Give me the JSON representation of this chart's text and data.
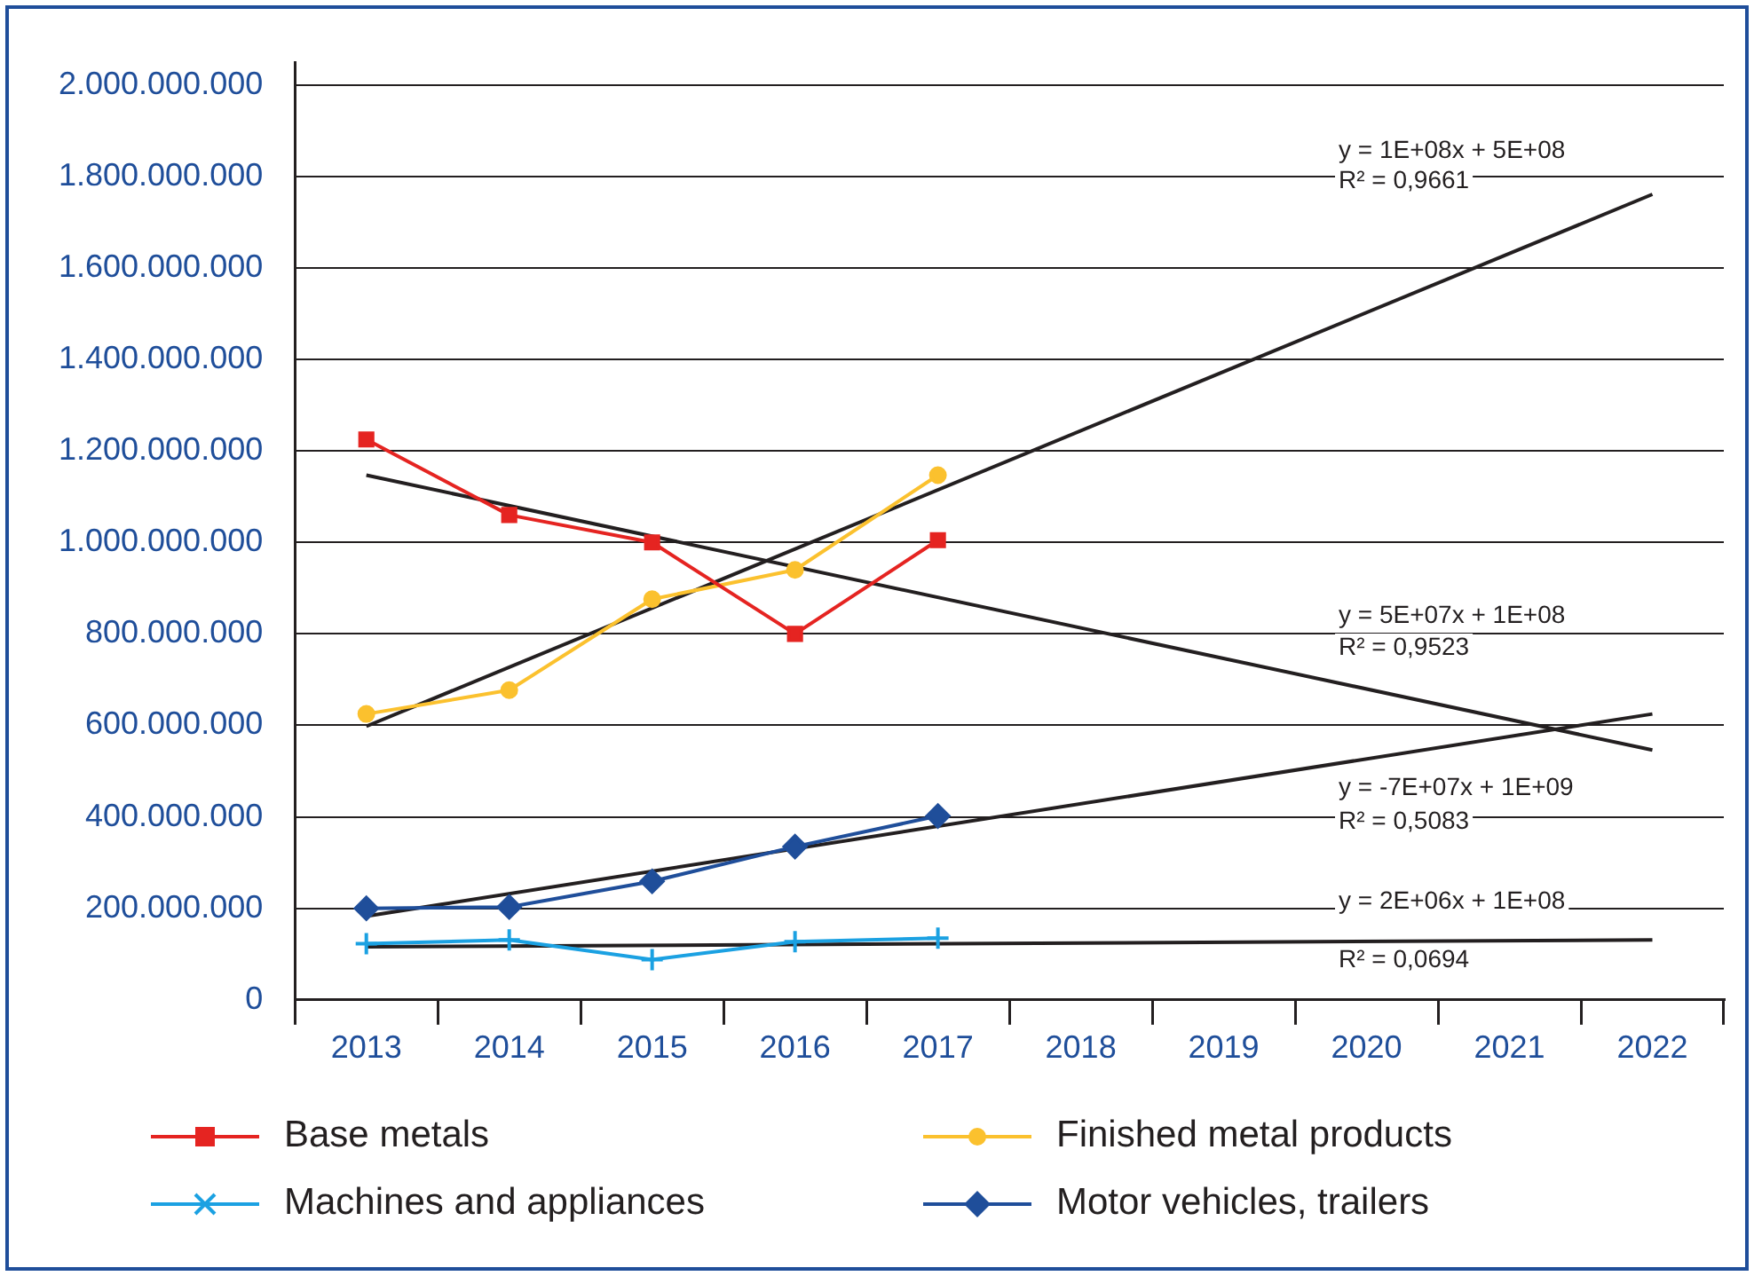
{
  "chart_data": {
    "type": "line",
    "categories": [
      "2013",
      "2014",
      "2015",
      "2016",
      "2017",
      "2018",
      "2019",
      "2020",
      "2021",
      "2022"
    ],
    "ylim": [
      0,
      2050000000
    ],
    "yticks": [
      0,
      {
        "value": 200000000,
        "label": "200.000.000"
      },
      {
        "value": 400000000,
        "label": "400.000.000"
      },
      {
        "value": 600000000,
        "label": "600.000.000"
      },
      {
        "value": 800000000,
        "label": "800.000.000"
      },
      {
        "value": 1000000000,
        "label": "1.000.000.000"
      },
      {
        "value": 1200000000,
        "label": "1.200.000.000"
      },
      {
        "value": 1400000000,
        "label": "1.400.000.000"
      },
      {
        "value": 1600000000,
        "label": "1.600.000.000"
      },
      {
        "value": 1800000000,
        "label": "1.800.000.000"
      },
      {
        "value": 2000000000,
        "label": "2.000.000.000"
      }
    ],
    "grid": "y",
    "legend": "bottom",
    "line_style": "solid",
    "series": [
      {
        "name": "Base metals",
        "color": "#e52421",
        "marker": "square",
        "values": [
          1225000000,
          1060000000,
          1000000000,
          800000000,
          1005000000,
          null,
          null,
          null,
          null,
          null
        ]
      },
      {
        "name": "Finished metal products",
        "color": "#fbc12e",
        "marker": "circle",
        "values": [
          625000000,
          677000000,
          876000000,
          940000000,
          1147000000,
          null,
          null,
          null,
          null,
          null
        ]
      },
      {
        "name": "Machines and appliances",
        "color": "#1ba1e2",
        "marker": "cross",
        "values": [
          123000000,
          131000000,
          88000000,
          127000000,
          135000000,
          null,
          null,
          null,
          null,
          null
        ]
      },
      {
        "name": "Motor vehicles, trailers",
        "color": "#1f4e9a",
        "marker": "diamond",
        "values": [
          200000000,
          203000000,
          259000000,
          335000000,
          402000000,
          null,
          null,
          null,
          null,
          null
        ]
      },
      {
        "type": "line",
        "color": "#231f20",
        "marker": "none",
        "values": [
          598000000,
          null,
          null,
          null,
          null,
          null,
          null,
          null,
          null,
          1761000000
        ]
      },
      {
        "type": "line",
        "color": "#231f20",
        "marker": "none",
        "values": [
          1147000000,
          null,
          null,
          null,
          null,
          null,
          null,
          null,
          null,
          546000000
        ]
      },
      {
        "type": "line",
        "color": "#231f20",
        "marker": "none",
        "values": [
          183000000,
          null,
          null,
          null,
          null,
          null,
          null,
          null,
          null,
          625000000
        ]
      },
      {
        "type": "line",
        "color": "#231f20",
        "marker": "none",
        "values": [
          116000000,
          null,
          null,
          null,
          null,
          null,
          null,
          null,
          null,
          131000000
        ]
      }
    ],
    "annotations": [
      "y = 1E+08x + 5E+08",
      "R² = 0,9661",
      "y = 5E+07x + 1E+08",
      "R² = 0,9523",
      "y = -7E+07x + 1E+09",
      "R² = 0,5083",
      "y = 2E+06x + 1E+08",
      "R² = 0,0694"
    ]
  }
}
